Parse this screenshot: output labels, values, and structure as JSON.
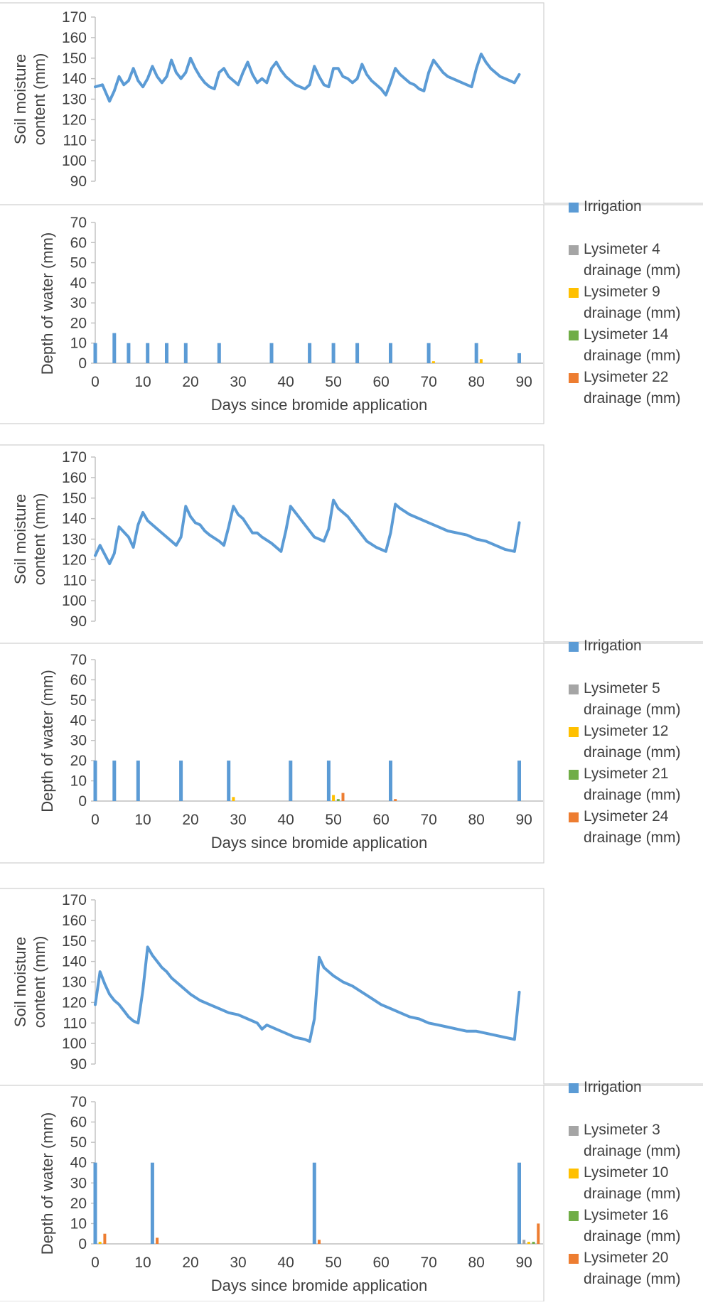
{
  "colors": {
    "line": "#5b9bd5",
    "irrigation": "#5b9bd5",
    "grey": "#a5a5a5",
    "yellow": "#ffc000",
    "green": "#70ad47",
    "orange": "#ed7d31",
    "axis": "#bfbfbf",
    "text": "#404040"
  },
  "chart_data": [
    {
      "type": "line",
      "panel": 1,
      "ylabel": [
        "Soil moisture",
        "content (mm)"
      ],
      "ylim": [
        90,
        170
      ],
      "yticks": [
        "90",
        "100",
        "110",
        "120",
        "130",
        "140",
        "150",
        "160",
        "170"
      ],
      "xlim": [
        0,
        94
      ],
      "series": [
        {
          "x": [
            0,
            1.5,
            3,
            4,
            5,
            6,
            7,
            8,
            9,
            10,
            11,
            12,
            13,
            14,
            15,
            16,
            17,
            18,
            19,
            20,
            21,
            22,
            23,
            24,
            25,
            26,
            27,
            28,
            29,
            30,
            31,
            32,
            33,
            34,
            35,
            36,
            37,
            38,
            39,
            40,
            41,
            42,
            43,
            44,
            45,
            46,
            47,
            48,
            49,
            50,
            51,
            52,
            53,
            54,
            55,
            56,
            57,
            58,
            59,
            60,
            61,
            62,
            63,
            64,
            65,
            66,
            67,
            68,
            69,
            70,
            71,
            72,
            73,
            74,
            75,
            76,
            77,
            78,
            79,
            80,
            81,
            82,
            83,
            84,
            85,
            86,
            87,
            88,
            89
          ],
          "values": [
            136,
            137,
            129,
            134,
            141,
            137,
            139,
            145,
            139,
            136,
            140,
            146,
            141,
            138,
            141,
            149,
            143,
            140,
            143,
            150,
            145,
            141,
            138,
            136,
            135,
            143,
            145,
            141,
            139,
            137,
            143,
            148,
            142,
            138,
            140,
            138,
            145,
            148,
            144,
            141,
            139,
            137,
            136,
            135,
            137,
            146,
            141,
            137,
            136,
            145,
            145,
            141,
            140,
            138,
            140,
            147,
            142,
            139,
            137,
            135,
            132,
            138,
            145,
            142,
            140,
            138,
            137,
            135,
            134,
            143,
            149,
            146,
            143,
            141,
            140,
            139,
            138,
            137,
            136,
            145,
            152,
            148,
            145,
            143,
            141,
            140,
            139,
            138,
            142
          ]
        }
      ]
    },
    {
      "type": "bar",
      "panel": 1,
      "ylabel": "Depth of water (mm)",
      "xlabel": "Days since bromide application",
      "ylim": [
        0,
        70
      ],
      "yticks": [
        "0",
        "10",
        "20",
        "30",
        "40",
        "50",
        "60",
        "70"
      ],
      "xlim": [
        0,
        94
      ],
      "xticks": [
        "0",
        "10",
        "20",
        "30",
        "40",
        "50",
        "60",
        "70",
        "80",
        "90"
      ],
      "legend": [
        "Irrigation",
        "Lysimeter 4 drainage (mm)",
        "Lysimeter 9 drainage (mm)",
        "Lysimeter 14 drainage (mm)",
        "Lysimeter 22 drainage (mm)"
      ],
      "series": [
        {
          "name": "Irrigation",
          "x": [
            0,
            4,
            7,
            11,
            15,
            19,
            26,
            37,
            45,
            50,
            55,
            62,
            70,
            80,
            89
          ],
          "values": [
            10,
            15,
            10,
            10,
            10,
            10,
            10,
            10,
            10,
            10,
            10,
            10,
            10,
            10,
            5
          ]
        },
        {
          "name": "Lysimeter 4 drainage (mm)",
          "x": [],
          "values": []
        },
        {
          "name": "Lysimeter 9 drainage (mm)",
          "x": [
            71,
            81
          ],
          "values": [
            1,
            2
          ]
        },
        {
          "name": "Lysimeter 14 drainage (mm)",
          "x": [],
          "values": []
        },
        {
          "name": "Lysimeter 22 drainage (mm)",
          "x": [],
          "values": []
        }
      ]
    },
    {
      "type": "line",
      "panel": 2,
      "ylabel": [
        "Soil moisture",
        "content (mm)"
      ],
      "ylim": [
        90,
        170
      ],
      "yticks": [
        "90",
        "100",
        "110",
        "120",
        "130",
        "140",
        "150",
        "160",
        "170"
      ],
      "xlim": [
        0,
        94
      ],
      "series": [
        {
          "x": [
            0,
            1,
            3,
            4,
            5,
            7,
            8,
            9,
            10,
            11,
            13,
            15,
            17,
            18,
            19,
            20,
            21,
            22,
            23,
            24,
            26,
            27,
            28,
            29,
            30,
            31,
            33,
            34,
            35,
            37,
            39,
            40,
            41,
            42,
            44,
            46,
            48,
            49,
            50,
            51,
            53,
            55,
            57,
            59,
            61,
            62,
            63,
            64,
            66,
            68,
            70,
            72,
            74,
            76,
            78,
            80,
            82,
            84,
            86,
            88,
            89
          ],
          "values": [
            122,
            127,
            118,
            123,
            136,
            131,
            126,
            137,
            143,
            139,
            135,
            131,
            127,
            131,
            146,
            141,
            138,
            137,
            134,
            132,
            129,
            127,
            136,
            146,
            142,
            140,
            133,
            133,
            131,
            128,
            124,
            134,
            146,
            143,
            137,
            131,
            129,
            135,
            149,
            145,
            141,
            135,
            129,
            126,
            124,
            133,
            147,
            145,
            142,
            140,
            138,
            136,
            134,
            133,
            132,
            130,
            129,
            127,
            125,
            124,
            138
          ]
        }
      ]
    },
    {
      "type": "bar",
      "panel": 2,
      "ylabel": "Depth of water (mm)",
      "xlabel": "Days since bromide application",
      "ylim": [
        0,
        70
      ],
      "yticks": [
        "0",
        "10",
        "20",
        "30",
        "40",
        "50",
        "60",
        "70"
      ],
      "xlim": [
        0,
        94
      ],
      "xticks": [
        "0",
        "10",
        "20",
        "30",
        "40",
        "50",
        "60",
        "70",
        "80",
        "90"
      ],
      "legend": [
        "Irrigation",
        "Lysimeter 5 drainage (mm)",
        "Lysimeter 12 drainage (mm)",
        "Lysimeter 21 drainage (mm)",
        "Lysimeter 24 drainage (mm)"
      ],
      "series": [
        {
          "name": "Irrigation",
          "x": [
            0,
            4,
            9,
            18,
            28,
            41,
            49,
            62,
            89
          ],
          "values": [
            20,
            20,
            20,
            20,
            20,
            20,
            20,
            20,
            20
          ]
        },
        {
          "name": "Lysimeter 5 drainage (mm)",
          "x": [],
          "values": []
        },
        {
          "name": "Lysimeter 12 drainage (mm)",
          "x": [
            29,
            50
          ],
          "values": [
            2,
            3
          ]
        },
        {
          "name": "Lysimeter 21 drainage (mm)",
          "x": [
            51
          ],
          "values": [
            1
          ]
        },
        {
          "name": "Lysimeter 24 drainage (mm)",
          "x": [
            52,
            63
          ],
          "values": [
            4,
            1
          ]
        }
      ]
    },
    {
      "type": "line",
      "panel": 3,
      "ylabel": [
        "Soil moisture",
        "content (mm)"
      ],
      "ylim": [
        90,
        170
      ],
      "yticks": [
        "90",
        "100",
        "110",
        "120",
        "130",
        "140",
        "150",
        "160",
        "170"
      ],
      "xlim": [
        0,
        94
      ],
      "series": [
        {
          "x": [
            0,
            1,
            2,
            3,
            4,
            5,
            6,
            7,
            8,
            9,
            10,
            11,
            12,
            13,
            14,
            15,
            16,
            17,
            18,
            19,
            20,
            22,
            24,
            26,
            28,
            30,
            32,
            34,
            35,
            36,
            38,
            40,
            42,
            44,
            45,
            46,
            47,
            48,
            49,
            50,
            52,
            54,
            56,
            58,
            60,
            62,
            64,
            66,
            68,
            70,
            72,
            74,
            76,
            78,
            80,
            82,
            84,
            86,
            88,
            89
          ],
          "values": [
            119,
            135,
            129,
            124,
            121,
            119,
            116,
            113,
            111,
            110,
            126,
            147,
            143,
            140,
            137,
            135,
            132,
            130,
            128,
            126,
            124,
            121,
            119,
            117,
            115,
            114,
            112,
            110,
            107,
            109,
            107,
            105,
            103,
            102,
            101,
            112,
            142,
            137,
            135,
            133,
            130,
            128,
            125,
            122,
            119,
            117,
            115,
            113,
            112,
            110,
            109,
            108,
            107,
            106,
            106,
            105,
            104,
            103,
            102,
            125
          ]
        }
      ]
    },
    {
      "type": "bar",
      "panel": 3,
      "ylabel": "Depth of water (mm)",
      "xlabel": "Days since bromide application",
      "ylim": [
        0,
        70
      ],
      "yticks": [
        "0",
        "10",
        "20",
        "30",
        "40",
        "50",
        "60",
        "70"
      ],
      "xlim": [
        0,
        94
      ],
      "xticks": [
        "0",
        "10",
        "20",
        "30",
        "40",
        "50",
        "60",
        "70",
        "80",
        "90"
      ],
      "legend": [
        "Irrigation",
        "Lysimeter 3 drainage (mm)",
        "Lysimeter 10 drainage (mm)",
        "Lysimeter 16 drainage (mm)",
        "Lysimeter 20 drainage (mm)"
      ],
      "series": [
        {
          "name": "Irrigation",
          "x": [
            0,
            12,
            46,
            89
          ],
          "values": [
            40,
            40,
            40,
            40
          ]
        },
        {
          "name": "Lysimeter 3 drainage (mm)",
          "x": [
            90
          ],
          "values": [
            2
          ]
        },
        {
          "name": "Lysimeter 10 drainage (mm)",
          "x": [
            1,
            91
          ],
          "values": [
            1,
            1
          ]
        },
        {
          "name": "Lysimeter 16 drainage (mm)",
          "x": [
            92
          ],
          "values": [
            1
          ]
        },
        {
          "name": "Lysimeter 20 drainage (mm)",
          "x": [
            2,
            13,
            47,
            93
          ],
          "values": [
            5,
            3,
            2,
            10
          ]
        }
      ]
    }
  ]
}
